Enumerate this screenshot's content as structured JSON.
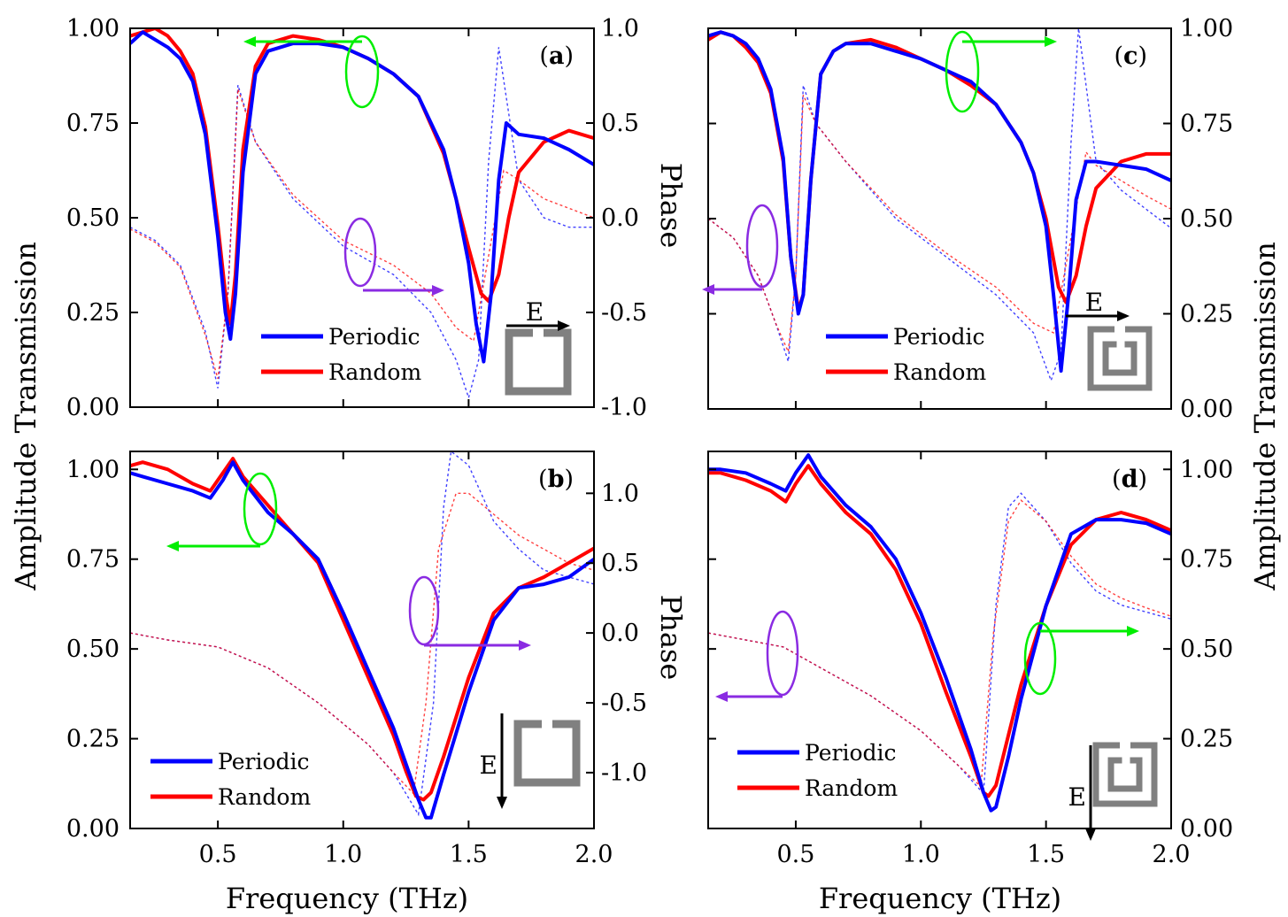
{
  "figure": {
    "left_ylabel": "Amplitude Transmission",
    "right_ylabel": "Amplitude Transmission",
    "phase_label": "Phase",
    "xlabel": "Frequency (THz)"
  },
  "colors": {
    "periodic": "#0000ff",
    "random": "#ff0000",
    "green_marker": "#00ee00",
    "purple_marker": "#8a2be2",
    "srr": "#808080"
  },
  "chart_data": [
    {
      "panel": "(a)",
      "type": "line",
      "xlim": [
        0.15,
        2.0
      ],
      "ylim": [
        0,
        1
      ],
      "yticks": [
        "0.00",
        "0.25",
        "0.50",
        "0.75",
        "1.00"
      ],
      "xticks": [],
      "phase_ylim": [
        -1,
        1
      ],
      "phase_ticks": [
        "-1.0",
        "-0.5",
        "0.0",
        "0.5",
        "1.0"
      ],
      "phase_title": "Phase",
      "legend": [
        "Periodic",
        "Random"
      ],
      "field": "E",
      "series": [
        {
          "name": "Periodic",
          "axis": "amplitude",
          "x": [
            0.15,
            0.2,
            0.25,
            0.3,
            0.35,
            0.4,
            0.45,
            0.5,
            0.53,
            0.55,
            0.57,
            0.6,
            0.65,
            0.7,
            0.8,
            0.9,
            1.0,
            1.1,
            1.2,
            1.3,
            1.4,
            1.45,
            1.5,
            1.53,
            1.56,
            1.59,
            1.62,
            1.65,
            1.7,
            1.8,
            1.9,
            2.0
          ],
          "y": [
            0.96,
            0.99,
            0.97,
            0.95,
            0.92,
            0.86,
            0.72,
            0.45,
            0.25,
            0.18,
            0.3,
            0.62,
            0.88,
            0.94,
            0.96,
            0.96,
            0.95,
            0.92,
            0.88,
            0.82,
            0.68,
            0.55,
            0.38,
            0.22,
            0.12,
            0.3,
            0.6,
            0.75,
            0.72,
            0.71,
            0.68,
            0.64
          ]
        },
        {
          "name": "Random",
          "axis": "amplitude",
          "x": [
            0.15,
            0.2,
            0.25,
            0.3,
            0.35,
            0.4,
            0.45,
            0.5,
            0.53,
            0.55,
            0.57,
            0.6,
            0.65,
            0.7,
            0.8,
            0.9,
            1.0,
            1.1,
            1.2,
            1.3,
            1.4,
            1.45,
            1.5,
            1.55,
            1.58,
            1.62,
            1.66,
            1.7,
            1.8,
            1.9,
            2.0
          ],
          "y": [
            0.98,
            0.99,
            1.0,
            0.98,
            0.94,
            0.88,
            0.74,
            0.48,
            0.3,
            0.22,
            0.35,
            0.68,
            0.9,
            0.96,
            0.98,
            0.97,
            0.95,
            0.92,
            0.88,
            0.82,
            0.67,
            0.55,
            0.42,
            0.3,
            0.28,
            0.35,
            0.5,
            0.62,
            0.7,
            0.73,
            0.71
          ]
        },
        {
          "name": "Periodic",
          "axis": "phase",
          "x": [
            0.15,
            0.25,
            0.35,
            0.45,
            0.5,
            0.54,
            0.58,
            0.65,
            0.8,
            1.0,
            1.2,
            1.35,
            1.45,
            1.5,
            1.54,
            1.58,
            1.62,
            1.7,
            1.8,
            1.9,
            2.0
          ],
          "y": [
            -0.05,
            -0.12,
            -0.25,
            -0.6,
            -0.9,
            -0.4,
            0.7,
            0.4,
            0.1,
            -0.15,
            -0.3,
            -0.5,
            -0.75,
            -0.95,
            -0.75,
            0.3,
            0.9,
            0.2,
            0.0,
            -0.05,
            -0.05
          ]
        },
        {
          "name": "Random",
          "axis": "phase",
          "x": [
            0.15,
            0.25,
            0.35,
            0.45,
            0.5,
            0.54,
            0.58,
            0.65,
            0.8,
            1.0,
            1.2,
            1.35,
            1.45,
            1.52,
            1.58,
            1.64,
            1.7,
            1.8,
            1.9,
            2.0
          ],
          "y": [
            -0.06,
            -0.13,
            -0.26,
            -0.62,
            -0.85,
            -0.4,
            0.68,
            0.4,
            0.12,
            -0.12,
            -0.25,
            -0.4,
            -0.58,
            -0.65,
            -0.2,
            0.25,
            0.2,
            0.1,
            0.05,
            0.0
          ]
        }
      ]
    },
    {
      "panel": "(c)",
      "type": "line",
      "xlim": [
        0.15,
        2.0
      ],
      "ylim": [
        0,
        1
      ],
      "yticks": [
        "0.00",
        "0.25",
        "0.50",
        "0.75",
        "1.00"
      ],
      "yticks_side": "right",
      "xticks": [],
      "phase_ylim": [
        -1,
        1
      ],
      "phase_ticks": [],
      "legend": [
        "Periodic",
        "Random"
      ],
      "field": "E",
      "series": [
        {
          "name": "Periodic",
          "axis": "amplitude",
          "x": [
            0.15,
            0.2,
            0.25,
            0.3,
            0.35,
            0.4,
            0.45,
            0.48,
            0.51,
            0.53,
            0.56,
            0.6,
            0.65,
            0.7,
            0.8,
            0.9,
            1.0,
            1.1,
            1.2,
            1.3,
            1.4,
            1.45,
            1.5,
            1.53,
            1.56,
            1.59,
            1.62,
            1.66,
            1.7,
            1.8,
            1.9,
            2.0
          ],
          "y": [
            0.98,
            0.99,
            0.98,
            0.96,
            0.92,
            0.84,
            0.66,
            0.4,
            0.25,
            0.3,
            0.6,
            0.88,
            0.94,
            0.96,
            0.96,
            0.94,
            0.92,
            0.89,
            0.86,
            0.8,
            0.7,
            0.62,
            0.48,
            0.3,
            0.1,
            0.3,
            0.55,
            0.65,
            0.65,
            0.64,
            0.63,
            0.6
          ]
        },
        {
          "name": "Random",
          "axis": "amplitude",
          "x": [
            0.15,
            0.2,
            0.25,
            0.3,
            0.35,
            0.4,
            0.45,
            0.48,
            0.51,
            0.53,
            0.56,
            0.6,
            0.65,
            0.7,
            0.8,
            0.9,
            1.0,
            1.1,
            1.2,
            1.3,
            1.4,
            1.45,
            1.5,
            1.55,
            1.58,
            1.62,
            1.66,
            1.7,
            1.8,
            1.9,
            2.0
          ],
          "y": [
            0.97,
            0.99,
            0.98,
            0.95,
            0.91,
            0.83,
            0.65,
            0.4,
            0.26,
            0.3,
            0.6,
            0.88,
            0.94,
            0.96,
            0.97,
            0.95,
            0.92,
            0.89,
            0.85,
            0.8,
            0.7,
            0.62,
            0.5,
            0.32,
            0.28,
            0.35,
            0.48,
            0.58,
            0.65,
            0.67,
            0.67
          ]
        },
        {
          "name": "Periodic",
          "axis": "phase",
          "x": [
            0.15,
            0.25,
            0.35,
            0.42,
            0.47,
            0.5,
            0.53,
            0.58,
            0.7,
            0.9,
            1.1,
            1.3,
            1.45,
            1.52,
            1.56,
            1.6,
            1.63,
            1.7,
            1.8,
            1.9,
            2.0
          ],
          "y": [
            0.0,
            -0.1,
            -0.3,
            -0.55,
            -0.75,
            -0.3,
            0.7,
            0.5,
            0.3,
            0.0,
            -0.2,
            -0.4,
            -0.6,
            -0.85,
            -0.7,
            0.4,
            1.0,
            0.3,
            0.15,
            0.05,
            -0.05
          ]
        },
        {
          "name": "Random",
          "axis": "phase",
          "x": [
            0.15,
            0.25,
            0.35,
            0.42,
            0.47,
            0.5,
            0.53,
            0.58,
            0.7,
            0.9,
            1.1,
            1.3,
            1.45,
            1.53,
            1.6,
            1.66,
            1.7,
            1.8,
            1.9,
            2.0
          ],
          "y": [
            0.0,
            -0.1,
            -0.3,
            -0.55,
            -0.7,
            -0.3,
            0.65,
            0.5,
            0.3,
            0.02,
            -0.18,
            -0.36,
            -0.55,
            -0.6,
            -0.1,
            0.35,
            0.28,
            0.2,
            0.12,
            0.05
          ]
        }
      ]
    },
    {
      "panel": "(b)",
      "type": "line",
      "xlim": [
        0.15,
        2.0
      ],
      "ylim": [
        0,
        1.05
      ],
      "yticks": [
        "0.00",
        "0.25",
        "0.50",
        "0.75",
        "1.00"
      ],
      "xticks": [
        "0.5",
        "1.0",
        "1.5",
        "2.0"
      ],
      "phase_ylim": [
        -1.4,
        1.3
      ],
      "phase_ticks": [
        "-1.0",
        "-0.5",
        "0.0",
        "0.5",
        "1.0"
      ],
      "phase_title": "Phase",
      "legend": [
        "Periodic",
        "Random"
      ],
      "field": "E",
      "series": [
        {
          "name": "Periodic",
          "axis": "amplitude",
          "x": [
            0.15,
            0.2,
            0.3,
            0.4,
            0.47,
            0.52,
            0.56,
            0.6,
            0.7,
            0.8,
            0.9,
            1.0,
            1.1,
            1.2,
            1.25,
            1.3,
            1.33,
            1.35,
            1.4,
            1.5,
            1.6,
            1.7,
            1.8,
            1.9,
            2.0
          ],
          "y": [
            0.99,
            0.98,
            0.96,
            0.94,
            0.92,
            0.97,
            1.02,
            0.97,
            0.88,
            0.82,
            0.75,
            0.6,
            0.44,
            0.28,
            0.18,
            0.08,
            0.03,
            0.03,
            0.15,
            0.38,
            0.58,
            0.67,
            0.68,
            0.7,
            0.75
          ]
        },
        {
          "name": "Random",
          "axis": "amplitude",
          "x": [
            0.15,
            0.2,
            0.3,
            0.4,
            0.47,
            0.52,
            0.56,
            0.6,
            0.7,
            0.8,
            0.9,
            1.0,
            1.1,
            1.2,
            1.25,
            1.29,
            1.32,
            1.35,
            1.4,
            1.5,
            1.6,
            1.7,
            1.8,
            1.9,
            2.0
          ],
          "y": [
            1.01,
            1.02,
            1.0,
            0.96,
            0.94,
            0.99,
            1.03,
            0.98,
            0.9,
            0.82,
            0.74,
            0.58,
            0.42,
            0.26,
            0.16,
            0.09,
            0.08,
            0.1,
            0.2,
            0.42,
            0.6,
            0.67,
            0.7,
            0.74,
            0.78
          ]
        },
        {
          "name": "Periodic",
          "axis": "phase",
          "x": [
            0.15,
            0.3,
            0.5,
            0.7,
            0.9,
            1.1,
            1.2,
            1.3,
            1.36,
            1.4,
            1.43,
            1.5,
            1.6,
            1.7,
            1.8,
            1.9,
            2.0
          ],
          "y": [
            0.0,
            -0.05,
            -0.1,
            -0.25,
            -0.5,
            -0.8,
            -1.0,
            -1.3,
            -0.5,
            0.9,
            1.3,
            1.2,
            0.8,
            0.6,
            0.45,
            0.4,
            0.35
          ]
        },
        {
          "name": "Random",
          "axis": "phase",
          "x": [
            0.15,
            0.3,
            0.5,
            0.7,
            0.9,
            1.1,
            1.2,
            1.28,
            1.33,
            1.38,
            1.45,
            1.5,
            1.6,
            1.7,
            1.8,
            1.9,
            2.0
          ],
          "y": [
            0.0,
            -0.05,
            -0.1,
            -0.25,
            -0.5,
            -0.8,
            -1.0,
            -1.15,
            -0.5,
            0.6,
            1.0,
            1.0,
            0.85,
            0.7,
            0.6,
            0.5,
            0.45
          ]
        }
      ]
    },
    {
      "panel": "(d)",
      "type": "line",
      "xlim": [
        0.15,
        2.0
      ],
      "ylim": [
        0,
        1.05
      ],
      "yticks": [
        "0.00",
        "0.25",
        "0.50",
        "0.75",
        "1.00"
      ],
      "yticks_side": "right",
      "xticks": [
        "0.5",
        "1.0",
        "1.5",
        "2.0"
      ],
      "phase_ylim": [
        -1.4,
        1.3
      ],
      "phase_ticks": [],
      "legend": [
        "Periodic",
        "Random"
      ],
      "field": "E",
      "series": [
        {
          "name": "Periodic",
          "axis": "amplitude",
          "x": [
            0.15,
            0.2,
            0.3,
            0.4,
            0.46,
            0.5,
            0.55,
            0.6,
            0.7,
            0.8,
            0.9,
            1.0,
            1.1,
            1.2,
            1.25,
            1.28,
            1.3,
            1.35,
            1.4,
            1.5,
            1.6,
            1.7,
            1.8,
            1.9,
            2.0
          ],
          "y": [
            1.0,
            1.0,
            0.99,
            0.96,
            0.94,
            0.99,
            1.04,
            0.98,
            0.9,
            0.84,
            0.75,
            0.6,
            0.42,
            0.22,
            0.1,
            0.05,
            0.06,
            0.2,
            0.36,
            0.62,
            0.82,
            0.86,
            0.86,
            0.85,
            0.82
          ]
        },
        {
          "name": "Random",
          "axis": "amplitude",
          "x": [
            0.15,
            0.2,
            0.3,
            0.4,
            0.46,
            0.5,
            0.55,
            0.6,
            0.7,
            0.8,
            0.9,
            1.0,
            1.1,
            1.2,
            1.25,
            1.27,
            1.3,
            1.35,
            1.4,
            1.5,
            1.6,
            1.7,
            1.8,
            1.9,
            2.0
          ],
          "y": [
            0.99,
            0.99,
            0.97,
            0.94,
            0.91,
            0.96,
            1.01,
            0.96,
            0.88,
            0.82,
            0.72,
            0.57,
            0.38,
            0.2,
            0.1,
            0.09,
            0.12,
            0.26,
            0.4,
            0.62,
            0.79,
            0.86,
            0.88,
            0.86,
            0.83
          ]
        },
        {
          "name": "Periodic",
          "axis": "phase",
          "x": [
            0.15,
            0.3,
            0.45,
            0.6,
            0.8,
            1.0,
            1.15,
            1.25,
            1.3,
            1.35,
            1.4,
            1.5,
            1.6,
            1.7,
            1.8,
            1.9,
            2.0
          ],
          "y": [
            0.0,
            -0.05,
            -0.1,
            -0.25,
            -0.45,
            -0.7,
            -0.95,
            -1.15,
            0.2,
            0.9,
            1.0,
            0.8,
            0.5,
            0.3,
            0.2,
            0.15,
            0.1
          ]
        },
        {
          "name": "Random",
          "axis": "phase",
          "x": [
            0.15,
            0.3,
            0.45,
            0.6,
            0.8,
            1.0,
            1.15,
            1.24,
            1.29,
            1.35,
            1.4,
            1.5,
            1.6,
            1.7,
            1.8,
            1.9,
            2.0
          ],
          "y": [
            0.0,
            -0.05,
            -0.1,
            -0.25,
            -0.45,
            -0.7,
            -0.95,
            -1.1,
            0.0,
            0.8,
            0.95,
            0.8,
            0.55,
            0.35,
            0.25,
            0.18,
            0.12
          ]
        }
      ]
    }
  ]
}
